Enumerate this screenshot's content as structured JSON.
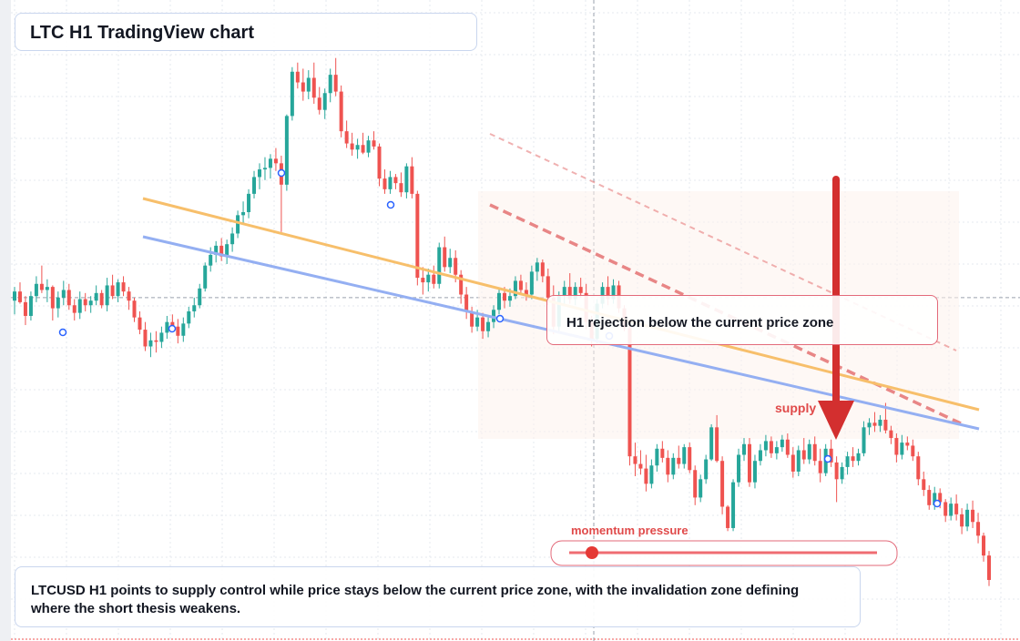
{
  "title": "LTC H1 TradingView chart",
  "callout": "H1 rejection below the current price zone",
  "summary": "LTCUSD H1 points to supply control while price stays below the current price zone, with the invalidation zone defining where the short thesis weakens.",
  "labels": {
    "supply": "supply",
    "momentum": "momentum pressure"
  },
  "colors": {
    "bull": "#26a69a",
    "bear": "#ef5350",
    "grid": "#e6e9ef",
    "orange_line": "#f7bf6b",
    "blue_line": "#94aff2",
    "resistance": "#e57373",
    "arrow": "#d32f2f"
  },
  "chart_data": {
    "type": "candlestick",
    "symbol": "LTCUSD",
    "timeframe": "H1",
    "current_price": 72.5,
    "candles": [
      [
        72.3,
        73.2,
        71.4,
        72.9
      ],
      [
        72.9,
        73.5,
        72.1,
        72.2
      ],
      [
        72.2,
        72.6,
        70.7,
        71.3
      ],
      [
        71.3,
        72.9,
        71.0,
        72.6
      ],
      [
        72.6,
        73.9,
        72.2,
        73.4
      ],
      [
        73.4,
        74.6,
        72.8,
        73.0
      ],
      [
        73.0,
        73.7,
        72.2,
        73.2
      ],
      [
        73.2,
        73.3,
        71.0,
        71.8
      ],
      [
        71.8,
        72.9,
        71.2,
        72.5
      ],
      [
        72.5,
        73.6,
        72.0,
        73.0
      ],
      [
        73.0,
        73.4,
        71.7,
        72.0
      ],
      [
        72.0,
        72.4,
        71.0,
        71.5
      ],
      [
        71.5,
        72.9,
        71.1,
        72.4
      ],
      [
        72.4,
        72.8,
        71.6,
        72.0
      ],
      [
        72.0,
        72.6,
        71.5,
        72.3
      ],
      [
        72.3,
        73.3,
        72.0,
        72.8
      ],
      [
        72.8,
        73.0,
        71.8,
        72.0
      ],
      [
        72.0,
        73.8,
        71.6,
        73.3
      ],
      [
        73.3,
        74.0,
        72.4,
        72.6
      ],
      [
        72.6,
        73.7,
        72.2,
        73.5
      ],
      [
        73.5,
        73.9,
        72.6,
        72.9
      ],
      [
        72.9,
        73.2,
        71.7,
        72.3
      ],
      [
        72.3,
        72.5,
        70.9,
        71.2
      ],
      [
        71.2,
        71.6,
        70.1,
        70.4
      ],
      [
        70.4,
        70.9,
        69.0,
        69.3
      ],
      [
        69.3,
        70.2,
        68.6,
        69.7
      ],
      [
        69.7,
        70.3,
        68.9,
        69.6
      ],
      [
        69.6,
        70.6,
        69.2,
        70.2
      ],
      [
        70.2,
        71.3,
        69.8,
        70.9
      ],
      [
        70.9,
        71.4,
        70.3,
        70.6
      ],
      [
        70.6,
        71.1,
        69.5,
        70.0
      ],
      [
        70.0,
        71.2,
        69.6,
        70.8
      ],
      [
        70.8,
        71.9,
        70.5,
        71.6
      ],
      [
        71.6,
        72.5,
        71.2,
        72.0
      ],
      [
        72.0,
        73.4,
        71.8,
        73.1
      ],
      [
        73.1,
        74.8,
        72.9,
        74.6
      ],
      [
        74.6,
        75.8,
        74.2,
        75.3
      ],
      [
        75.3,
        76.2,
        74.8,
        75.9
      ],
      [
        75.9,
        76.4,
        74.9,
        75.2
      ],
      [
        75.2,
        76.3,
        74.7,
        76.0
      ],
      [
        76.0,
        77.1,
        75.5,
        76.7
      ],
      [
        76.7,
        78.2,
        76.4,
        77.9
      ],
      [
        77.9,
        78.8,
        77.3,
        78.1
      ],
      [
        78.1,
        79.6,
        77.7,
        79.3
      ],
      [
        79.3,
        80.8,
        79.0,
        80.4
      ],
      [
        80.4,
        81.3,
        79.6,
        80.9
      ],
      [
        80.9,
        81.7,
        80.2,
        81.0
      ],
      [
        81.0,
        81.9,
        80.3,
        81.6
      ],
      [
        81.6,
        82.3,
        80.8,
        81.3
      ],
      [
        81.3,
        81.8,
        76.8,
        79.9
      ],
      [
        79.9,
        84.5,
        79.5,
        84.4
      ],
      [
        84.4,
        87.6,
        84.1,
        87.3
      ],
      [
        87.3,
        87.9,
        86.2,
        86.6
      ],
      [
        86.6,
        87.5,
        85.4,
        86.0
      ],
      [
        86.0,
        87.4,
        85.5,
        86.9
      ],
      [
        86.9,
        87.9,
        85.2,
        85.6
      ],
      [
        85.6,
        86.3,
        84.5,
        84.8
      ],
      [
        84.8,
        86.2,
        84.2,
        85.9
      ],
      [
        85.9,
        87.5,
        85.3,
        87.1
      ],
      [
        87.1,
        88.2,
        85.7,
        86.0
      ],
      [
        86.0,
        86.4,
        83.0,
        83.4
      ],
      [
        83.4,
        84.1,
        82.3,
        82.6
      ],
      [
        82.6,
        83.3,
        81.8,
        82.2
      ],
      [
        82.2,
        82.9,
        81.6,
        82.5
      ],
      [
        82.5,
        83.3,
        81.9,
        82.0
      ],
      [
        82.0,
        83.1,
        81.7,
        82.8
      ],
      [
        82.8,
        83.4,
        82.2,
        82.4
      ],
      [
        82.4,
        82.6,
        79.8,
        80.3
      ],
      [
        80.3,
        80.9,
        79.3,
        79.6
      ],
      [
        79.6,
        80.8,
        79.3,
        80.4
      ],
      [
        80.4,
        80.6,
        79.6,
        80.0
      ],
      [
        80.0,
        80.7,
        79.1,
        79.4
      ],
      [
        79.4,
        81.3,
        79.0,
        81.1
      ],
      [
        81.1,
        81.7,
        79.0,
        79.3
      ],
      [
        79.3,
        79.5,
        73.3,
        73.8
      ],
      [
        73.8,
        74.5,
        72.7,
        73.5
      ],
      [
        73.5,
        74.4,
        72.9,
        74.0
      ],
      [
        74.0,
        74.6,
        73.1,
        73.4
      ],
      [
        73.4,
        76.1,
        73.1,
        75.8
      ],
      [
        75.8,
        76.5,
        74.2,
        74.5
      ],
      [
        74.5,
        75.7,
        74.1,
        75.1
      ],
      [
        75.1,
        75.6,
        73.5,
        74.0
      ],
      [
        74.0,
        74.3,
        72.1,
        72.7
      ],
      [
        72.7,
        73.2,
        71.1,
        71.6
      ],
      [
        71.6,
        71.9,
        70.2,
        70.6
      ],
      [
        70.6,
        71.7,
        70.3,
        71.2
      ],
      [
        71.2,
        71.5,
        69.8,
        70.3
      ],
      [
        70.3,
        71.2,
        69.9,
        70.9
      ],
      [
        70.9,
        72.0,
        70.5,
        71.7
      ],
      [
        71.7,
        73.1,
        71.4,
        72.8
      ],
      [
        72.8,
        73.2,
        71.8,
        72.3
      ],
      [
        72.3,
        73.1,
        71.9,
        72.6
      ],
      [
        72.6,
        73.9,
        72.4,
        73.6
      ],
      [
        73.6,
        74.0,
        72.7,
        73.0
      ],
      [
        73.0,
        73.5,
        72.3,
        72.7
      ],
      [
        72.7,
        74.6,
        72.4,
        74.2
      ],
      [
        74.2,
        75.1,
        73.6,
        74.8
      ],
      [
        74.8,
        75.0,
        73.5,
        73.9
      ],
      [
        73.9,
        74.4,
        72.0,
        72.5
      ],
      [
        72.5,
        73.3,
        70.1,
        70.6
      ],
      [
        70.6,
        72.9,
        70.2,
        72.6
      ],
      [
        72.6,
        73.6,
        72.1,
        73.2
      ],
      [
        73.2,
        74.1,
        72.1,
        72.4
      ],
      [
        72.4,
        73.5,
        72.0,
        73.2
      ],
      [
        73.2,
        73.8,
        72.5,
        72.8
      ],
      [
        72.8,
        73.4,
        70.4,
        70.9
      ],
      [
        70.9,
        71.3,
        69.3,
        69.8
      ],
      [
        69.8,
        72.4,
        69.5,
        72.1
      ],
      [
        72.1,
        73.5,
        71.8,
        73.2
      ],
      [
        73.2,
        73.9,
        72.0,
        72.4
      ],
      [
        72.4,
        73.7,
        72.1,
        73.3
      ],
      [
        73.3,
        73.6,
        71.5,
        71.8
      ],
      [
        71.8,
        72.0,
        70.3,
        70.5
      ],
      [
        70.5,
        70.9,
        61.5,
        62.1
      ],
      [
        62.1,
        63.0,
        60.8,
        61.6
      ],
      [
        61.6,
        62.5,
        60.9,
        61.3
      ],
      [
        61.3,
        62.2,
        59.8,
        60.3
      ],
      [
        60.3,
        61.9,
        60.0,
        61.5
      ],
      [
        61.5,
        62.9,
        61.1,
        62.6
      ],
      [
        62.6,
        63.1,
        61.7,
        62.0
      ],
      [
        62.0,
        62.5,
        60.4,
        60.9
      ],
      [
        60.9,
        62.3,
        60.6,
        62.0
      ],
      [
        62.0,
        62.8,
        61.3,
        61.6
      ],
      [
        61.6,
        62.9,
        61.3,
        62.7
      ],
      [
        62.7,
        63.0,
        61.0,
        61.2
      ],
      [
        61.2,
        61.5,
        58.9,
        59.4
      ],
      [
        59.4,
        60.9,
        59.1,
        60.6
      ],
      [
        60.6,
        62.2,
        60.3,
        61.9
      ],
      [
        61.9,
        64.2,
        61.8,
        64.0
      ],
      [
        64.0,
        64.8,
        61.7,
        61.8
      ],
      [
        61.8,
        62.1,
        58.3,
        58.8
      ],
      [
        58.8,
        58.9,
        57.2,
        57.4
      ],
      [
        57.4,
        60.6,
        57.2,
        60.4
      ],
      [
        60.4,
        62.6,
        60.1,
        62.2
      ],
      [
        62.2,
        63.3,
        61.8,
        62.9
      ],
      [
        62.9,
        63.3,
        60.1,
        60.4
      ],
      [
        60.4,
        62.2,
        60.0,
        61.8
      ],
      [
        61.8,
        62.9,
        61.5,
        62.5
      ],
      [
        62.5,
        63.5,
        62.1,
        63.1
      ],
      [
        63.1,
        63.4,
        62.0,
        62.3
      ],
      [
        62.3,
        63.1,
        61.9,
        62.7
      ],
      [
        62.7,
        63.5,
        62.4,
        63.2
      ],
      [
        63.2,
        63.6,
        62.0,
        62.2
      ],
      [
        62.2,
        62.7,
        60.7,
        61.1
      ],
      [
        61.1,
        62.8,
        60.8,
        62.5
      ],
      [
        62.5,
        63.3,
        61.6,
        61.9
      ],
      [
        61.9,
        63.2,
        61.6,
        62.9
      ],
      [
        62.9,
        63.4,
        61.5,
        61.8
      ],
      [
        61.8,
        62.6,
        60.4,
        61.0
      ],
      [
        61.0,
        62.9,
        60.8,
        62.6
      ],
      [
        62.6,
        63.2,
        61.4,
        61.7
      ],
      [
        61.7,
        62.1,
        59.1,
        60.6
      ],
      [
        60.6,
        61.7,
        60.3,
        61.4
      ],
      [
        61.4,
        62.4,
        60.9,
        62.1
      ],
      [
        62.1,
        62.7,
        61.4,
        61.8
      ],
      [
        61.8,
        62.6,
        61.5,
        62.3
      ],
      [
        62.3,
        64.4,
        62.1,
        64.0
      ],
      [
        64.0,
        64.6,
        63.5,
        64.3
      ],
      [
        64.3,
        65.0,
        63.7,
        64.1
      ],
      [
        64.1,
        64.8,
        63.7,
        64.5
      ],
      [
        64.5,
        65.6,
        63.6,
        63.8
      ],
      [
        63.8,
        64.1,
        62.9,
        63.3
      ],
      [
        63.3,
        63.6,
        61.7,
        62.2
      ],
      [
        62.2,
        63.5,
        61.9,
        63.0
      ],
      [
        63.0,
        63.4,
        62.5,
        62.8
      ],
      [
        62.8,
        63.2,
        61.8,
        62.1
      ],
      [
        62.1,
        62.4,
        60.2,
        60.6
      ],
      [
        60.6,
        61.1,
        59.5,
        59.9
      ],
      [
        59.9,
        60.2,
        58.6,
        58.9
      ],
      [
        58.9,
        60.1,
        58.6,
        59.7
      ],
      [
        59.7,
        60.0,
        58.7,
        59.1
      ],
      [
        59.1,
        59.3,
        57.8,
        58.2
      ],
      [
        58.2,
        59.4,
        57.9,
        59.0
      ],
      [
        59.0,
        59.6,
        57.9,
        58.3
      ],
      [
        58.3,
        58.7,
        57.0,
        57.5
      ],
      [
        57.5,
        59.0,
        57.2,
        58.6
      ],
      [
        58.6,
        59.2,
        57.4,
        57.8
      ],
      [
        57.8,
        58.4,
        56.4,
        56.9
      ],
      [
        56.9,
        57.1,
        55.2,
        55.6
      ],
      [
        55.6,
        55.9,
        53.6,
        54.0
      ]
    ],
    "lines": {
      "orange_trendline": [
        [
          0,
          75.0
        ],
        [
          1,
          64.1
        ]
      ],
      "blue_trendline": [
        [
          0,
          74.0
        ],
        [
          1,
          63.6
        ]
      ]
    },
    "annotations": [
      "H1 rejection below the current price zone",
      "supply",
      "momentum pressure"
    ]
  }
}
